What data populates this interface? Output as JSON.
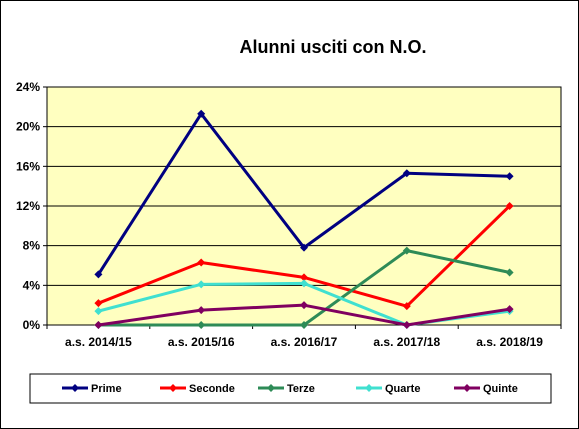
{
  "chart_data": {
    "type": "line",
    "title": "Alunni usciti con N.O.",
    "categories": [
      "a.s. 2014/15",
      "a.s. 2015/16",
      "a.s. 2016/17",
      "a.s. 2017/18",
      "a.s. 2018/19"
    ],
    "y_ticks": [
      "0%",
      "4%",
      "8%",
      "12%",
      "16%",
      "20%",
      "24%"
    ],
    "ylim": [
      0,
      24
    ],
    "y_unit": "%",
    "grid": true,
    "legend_position": "bottom",
    "series": [
      {
        "name": "Prime",
        "color": "#000080",
        "values": [
          5.1,
          21.3,
          7.8,
          15.3,
          15.0
        ]
      },
      {
        "name": "Seconde",
        "color": "#ff0000",
        "values": [
          2.2,
          6.3,
          4.8,
          1.9,
          12.0
        ]
      },
      {
        "name": "Terze",
        "color": "#2e8b57",
        "values": [
          0.0,
          0.0,
          0.0,
          7.5,
          5.3
        ]
      },
      {
        "name": "Quarte",
        "color": "#40e0d0",
        "values": [
          1.4,
          4.1,
          4.2,
          0.0,
          1.4
        ]
      },
      {
        "name": "Quinte",
        "color": "#800060",
        "values": [
          0.0,
          1.5,
          2.0,
          0.0,
          1.6
        ]
      }
    ],
    "colors": {
      "plot_background": "#ffffc0",
      "gridline": "#000000",
      "border": "#000000"
    }
  }
}
